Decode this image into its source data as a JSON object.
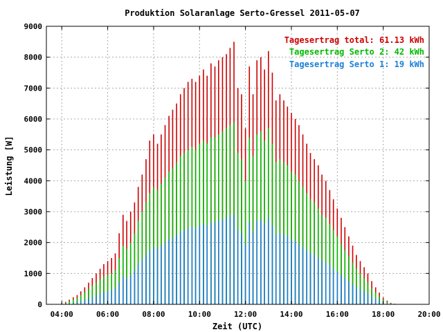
{
  "chart_data": {
    "type": "bar",
    "title": "Produktion Solaranlage Serto-Gressel 2011-05-07",
    "xlabel": "Zeit (UTC)",
    "ylabel": "Leistung [W]",
    "xlim": [
      3.33,
      20.0
    ],
    "ylim": [
      0,
      9000
    ],
    "x_ticks": [
      {
        "v": 4,
        "label": "04:00"
      },
      {
        "v": 6,
        "label": "06:00"
      },
      {
        "v": 8,
        "label": "08:00"
      },
      {
        "v": 10,
        "label": "10:00"
      },
      {
        "v": 12,
        "label": "12:00"
      },
      {
        "v": 14,
        "label": "14:00"
      },
      {
        "v": 16,
        "label": "16:00"
      },
      {
        "v": 18,
        "label": "18:00"
      },
      {
        "v": 20,
        "label": "20:00"
      }
    ],
    "y_ticks": [
      {
        "v": 0,
        "label": "0"
      },
      {
        "v": 1000,
        "label": "1000"
      },
      {
        "v": 2000,
        "label": "2000"
      },
      {
        "v": 3000,
        "label": "3000"
      },
      {
        "v": 4000,
        "label": "4000"
      },
      {
        "v": 5000,
        "label": "5000"
      },
      {
        "v": 6000,
        "label": "6000"
      },
      {
        "v": 7000,
        "label": "7000"
      },
      {
        "v": 8000,
        "label": "8000"
      },
      {
        "v": 9000,
        "label": "9000"
      }
    ],
    "grid": true,
    "legend_position": "top-right",
    "legend": [
      {
        "label": "Tagesertrag total: 61.13 kWh",
        "color": "#cc0000"
      },
      {
        "label": "Tagesertrag Serto 2: 42 kWh",
        "color": "#00bb00"
      },
      {
        "label": "Tagesertrag Serto 1: 19 kWh",
        "color": "#1a7fd9"
      }
    ],
    "colors": {
      "total": "#cc0000",
      "serto2": "#00bb00",
      "serto1": "#1a7fd9",
      "grid": "#a8a8a8",
      "axis": "#000000"
    },
    "series": [
      {
        "name": "Tagesertrag total: 61.13 kWh",
        "x": [
          4.0,
          4.17,
          4.33,
          4.5,
          4.67,
          4.83,
          5.0,
          5.17,
          5.33,
          5.5,
          5.67,
          5.83,
          6.0,
          6.17,
          6.33,
          6.5,
          6.67,
          6.83,
          7.0,
          7.17,
          7.33,
          7.5,
          7.67,
          7.83,
          8.0,
          8.17,
          8.33,
          8.5,
          8.67,
          8.83,
          9.0,
          9.17,
          9.33,
          9.5,
          9.67,
          9.83,
          10.0,
          10.17,
          10.33,
          10.5,
          10.67,
          10.83,
          11.0,
          11.17,
          11.33,
          11.5,
          11.67,
          11.83,
          12.0,
          12.17,
          12.33,
          12.5,
          12.67,
          12.83,
          13.0,
          13.17,
          13.33,
          13.5,
          13.67,
          13.83,
          14.0,
          14.17,
          14.33,
          14.5,
          14.67,
          14.83,
          15.0,
          15.17,
          15.33,
          15.5,
          15.67,
          15.83,
          16.0,
          16.17,
          16.33,
          16.5,
          16.67,
          16.83,
          17.0,
          17.17,
          17.33,
          17.5,
          17.67,
          17.83,
          18.0,
          18.17,
          18.33,
          18.5
        ],
        "values": [
          30,
          80,
          150,
          230,
          300,
          420,
          550,
          700,
          850,
          1000,
          1150,
          1300,
          1400,
          1500,
          1650,
          2300,
          2900,
          2700,
          3000,
          3300,
          3800,
          4200,
          4700,
          5300,
          5500,
          5200,
          5500,
          5800,
          6100,
          6300,
          6500,
          6800,
          7000,
          7200,
          7300,
          7200,
          7400,
          7600,
          7400,
          7800,
          7700,
          7900,
          8000,
          8100,
          8300,
          8500,
          7000,
          6800,
          5700,
          7700,
          6800,
          7900,
          8000,
          7600,
          8200,
          7500,
          6600,
          6800,
          6600,
          6400,
          6200,
          6000,
          5800,
          5500,
          5200,
          4900,
          4700,
          4500,
          4200,
          4000,
          3700,
          3400,
          3100,
          2800,
          2500,
          2200,
          1900,
          1600,
          1400,
          1200,
          1000,
          750,
          550,
          380,
          220,
          120,
          50,
          20
        ]
      },
      {
        "name": "Tagesertrag Serto 2: 42 kWh",
        "x": [
          4.0,
          4.17,
          4.33,
          4.5,
          4.67,
          4.83,
          5.0,
          5.17,
          5.33,
          5.5,
          5.67,
          5.83,
          6.0,
          6.17,
          6.33,
          6.5,
          6.67,
          6.83,
          7.0,
          7.17,
          7.33,
          7.5,
          7.67,
          7.83,
          8.0,
          8.17,
          8.33,
          8.5,
          8.67,
          8.83,
          9.0,
          9.17,
          9.33,
          9.5,
          9.67,
          9.83,
          10.0,
          10.17,
          10.33,
          10.5,
          10.67,
          10.83,
          11.0,
          11.17,
          11.33,
          11.5,
          11.67,
          11.83,
          12.0,
          12.17,
          12.33,
          12.5,
          12.67,
          12.83,
          13.0,
          13.17,
          13.33,
          13.5,
          13.67,
          13.83,
          14.0,
          14.17,
          14.33,
          14.5,
          14.67,
          14.83,
          15.0,
          15.17,
          15.33,
          15.5,
          15.67,
          15.83,
          16.0,
          16.17,
          16.33,
          16.5,
          16.67,
          16.83,
          17.0,
          17.17,
          17.33,
          17.5,
          17.67,
          17.83,
          18.0,
          18.17,
          18.33,
          18.5
        ],
        "values": [
          20,
          50,
          100,
          160,
          210,
          300,
          390,
          500,
          600,
          700,
          800,
          900,
          950,
          1000,
          1100,
          1500,
          1900,
          1800,
          2000,
          2300,
          2700,
          3000,
          3300,
          3600,
          3800,
          3700,
          3900,
          4100,
          4300,
          4400,
          4600,
          4800,
          4900,
          5000,
          5100,
          5000,
          5200,
          5300,
          5200,
          5400,
          5400,
          5500,
          5600,
          5700,
          5800,
          5900,
          4900,
          4700,
          4000,
          5400,
          4800,
          5500,
          5600,
          5300,
          5700,
          5200,
          4600,
          4700,
          4600,
          4500,
          4300,
          4200,
          4000,
          3800,
          3600,
          3400,
          3300,
          3100,
          2900,
          2800,
          2600,
          2400,
          2200,
          1950,
          1750,
          1550,
          1350,
          1150,
          1000,
          850,
          700,
          520,
          380,
          260,
          150,
          80,
          35,
          12
        ]
      },
      {
        "name": "Tagesertrag Serto 1: 19 kWh",
        "x": [
          4.0,
          4.17,
          4.33,
          4.5,
          4.67,
          4.83,
          5.0,
          5.17,
          5.33,
          5.5,
          5.67,
          5.83,
          6.0,
          6.17,
          6.33,
          6.5,
          6.67,
          6.83,
          7.0,
          7.17,
          7.33,
          7.5,
          7.67,
          7.83,
          8.0,
          8.17,
          8.33,
          8.5,
          8.67,
          8.83,
          9.0,
          9.17,
          9.33,
          9.5,
          9.67,
          9.83,
          10.0,
          10.17,
          10.33,
          10.5,
          10.67,
          10.83,
          11.0,
          11.17,
          11.33,
          11.5,
          11.67,
          11.83,
          12.0,
          12.17,
          12.33,
          12.5,
          12.67,
          12.83,
          13.0,
          13.17,
          13.33,
          13.5,
          13.67,
          13.83,
          14.0,
          14.17,
          14.33,
          14.5,
          14.67,
          14.83,
          15.0,
          15.17,
          15.33,
          15.5,
          15.67,
          15.83,
          16.0,
          16.17,
          16.33,
          16.5,
          16.67,
          16.83,
          17.0,
          17.17,
          17.33,
          17.5,
          17.67,
          17.83,
          18.0,
          18.17,
          18.33,
          18.5
        ],
        "values": [
          5,
          15,
          30,
          50,
          70,
          100,
          140,
          190,
          240,
          290,
          340,
          390,
          420,
          460,
          500,
          700,
          900,
          850,
          950,
          1100,
          1300,
          1450,
          1600,
          1750,
          1850,
          1800,
          1900,
          2000,
          2100,
          2150,
          2250,
          2350,
          2400,
          2450,
          2500,
          2450,
          2550,
          2600,
          2550,
          2650,
          2650,
          2700,
          2750,
          2800,
          2850,
          2900,
          2400,
          2300,
          1950,
          2650,
          2350,
          2700,
          2750,
          2600,
          2800,
          2550,
          2250,
          2300,
          2250,
          2200,
          2100,
          2050,
          1950,
          1850,
          1750,
          1650,
          1600,
          1500,
          1400,
          1350,
          1250,
          1150,
          1050,
          950,
          850,
          750,
          650,
          550,
          480,
          410,
          340,
          250,
          180,
          120,
          70,
          35,
          15,
          5
        ]
      }
    ]
  }
}
